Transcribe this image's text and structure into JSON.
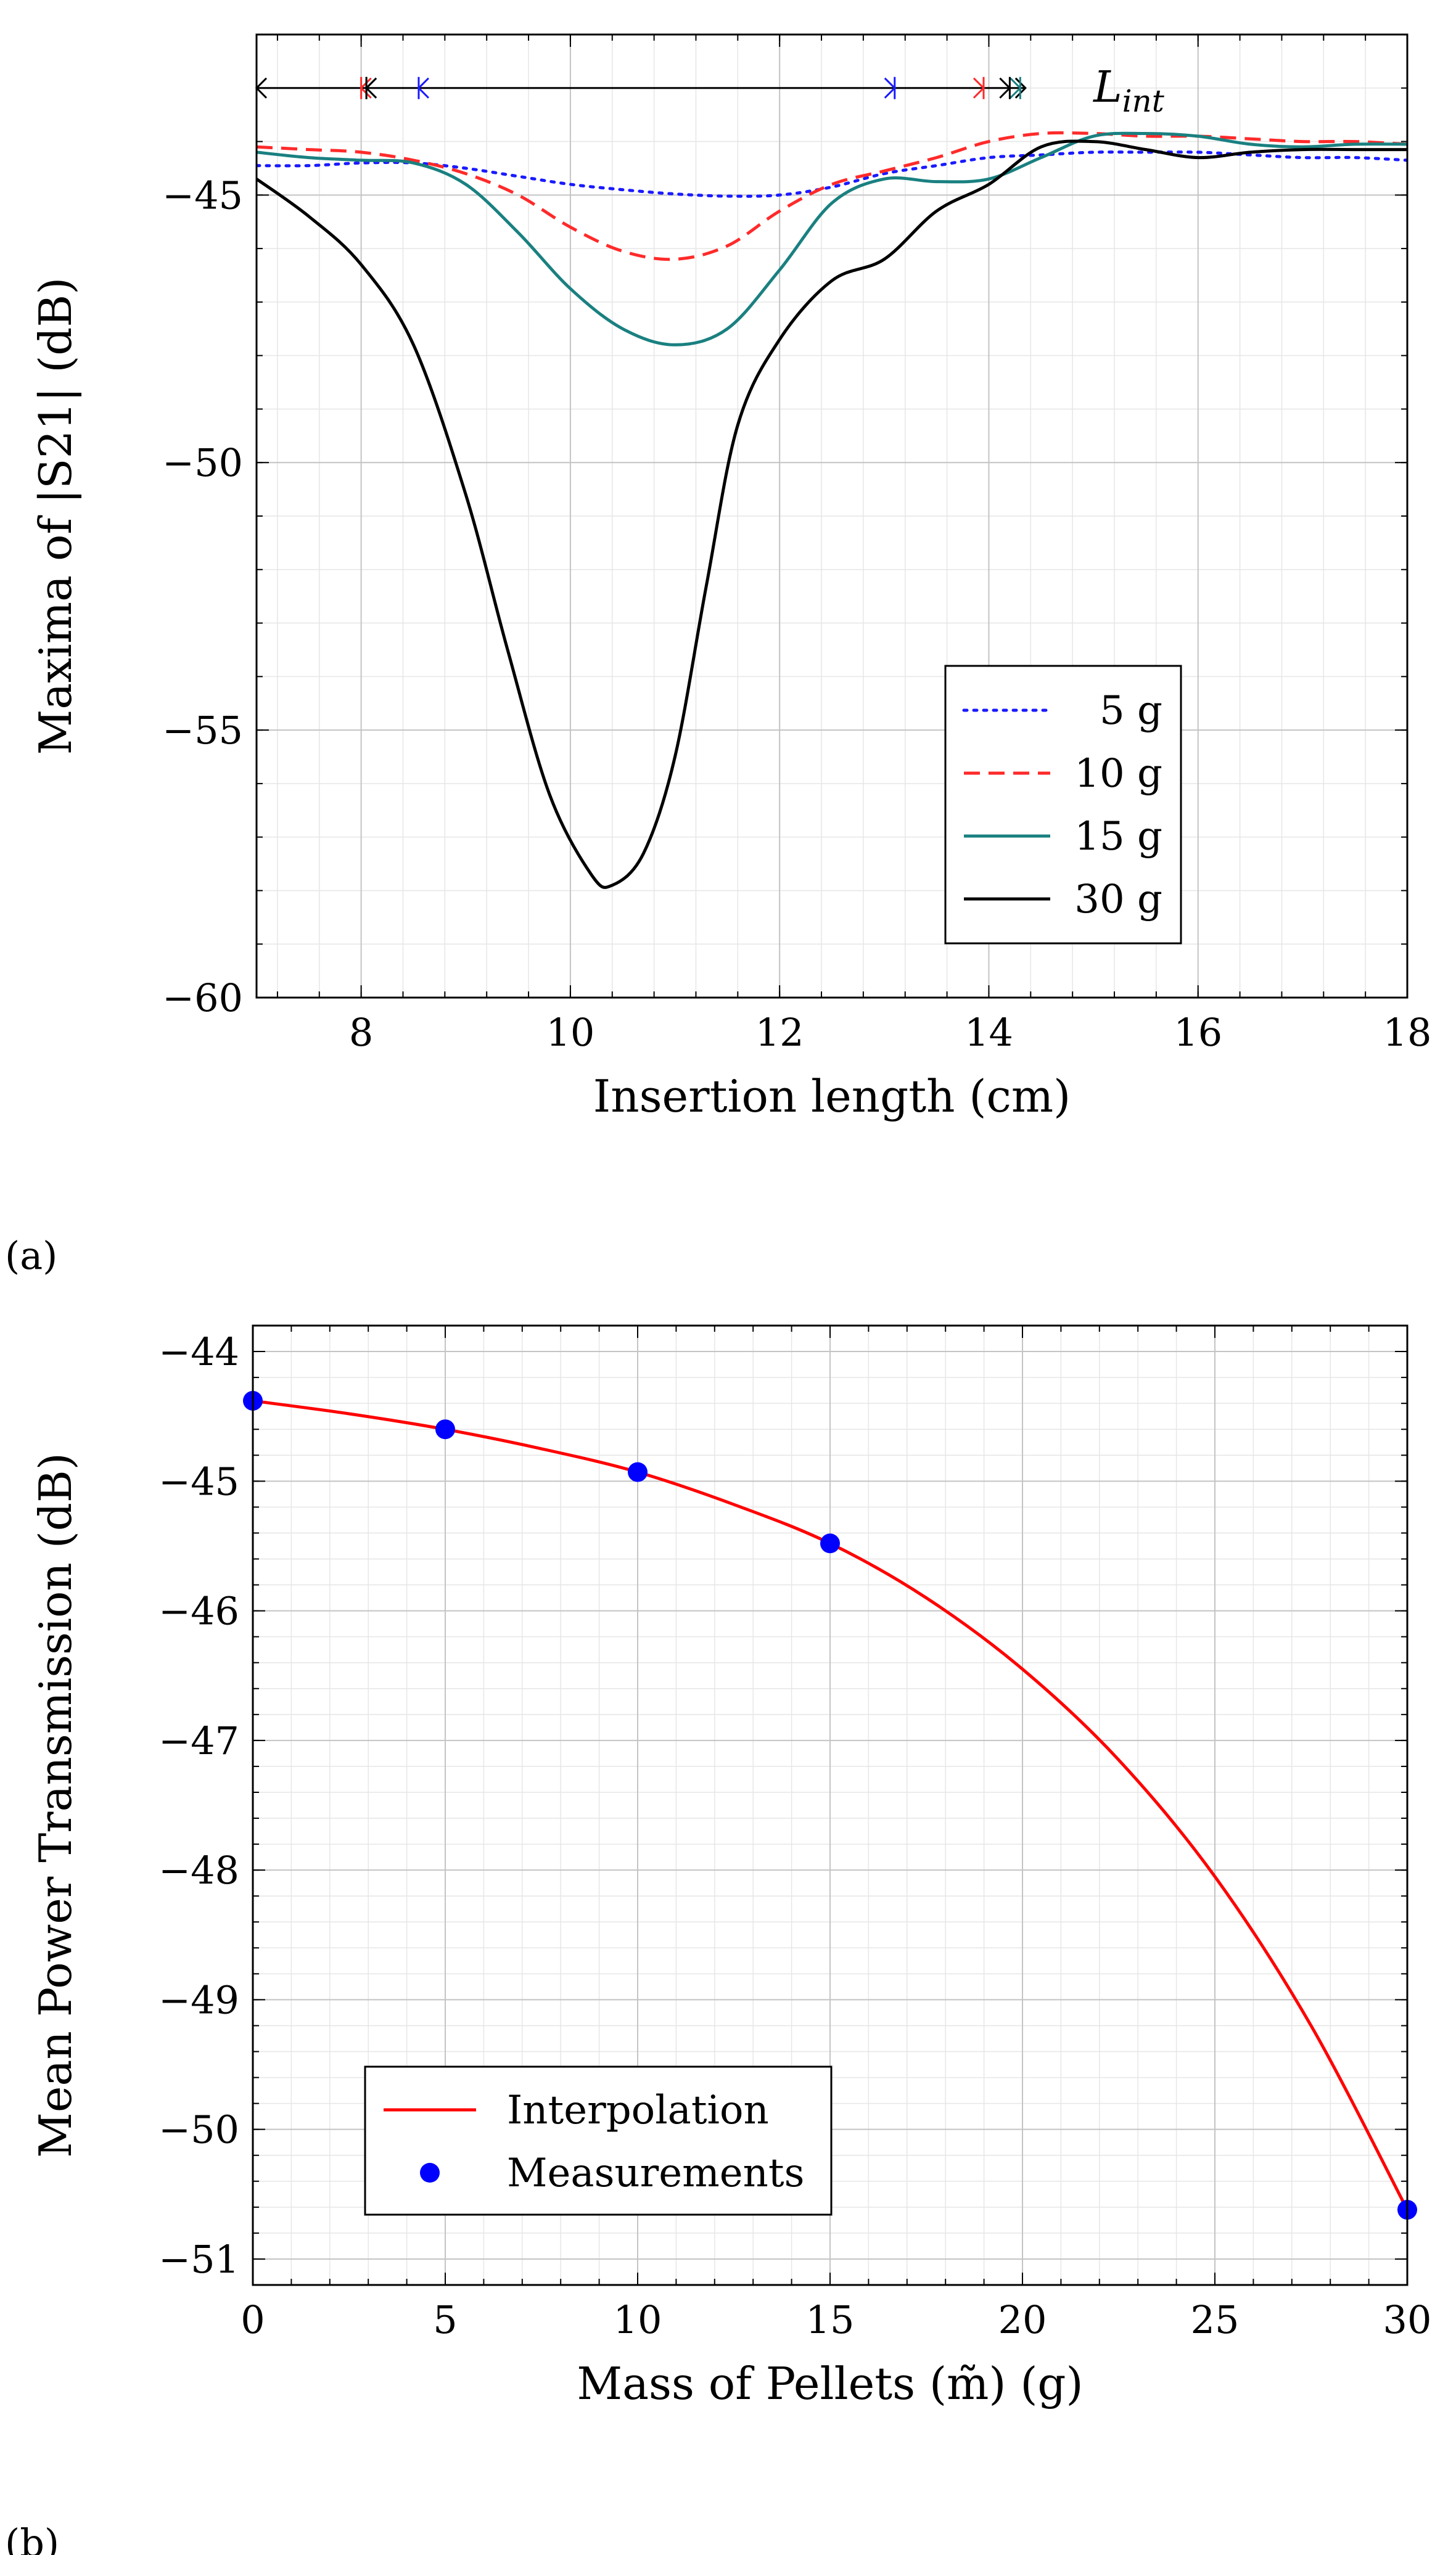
{
  "chart_data": [
    {
      "type": "line",
      "panel_label": "(a)",
      "xlabel": "Insertion length (cm)",
      "ylabel": "Maxima of |S21| (dB)",
      "xlim": [
        7,
        18
      ],
      "ylim": [
        -60,
        -42
      ],
      "xticks": [
        8,
        10,
        12,
        14,
        16,
        18
      ],
      "xtick_labels": [
        "8",
        "10",
        "12",
        "14",
        "16",
        "18"
      ],
      "yticks": [
        -60,
        -55,
        -50,
        -45
      ],
      "ytick_labels": [
        "−60",
        "−55",
        "−50",
        "−45"
      ],
      "grid": true,
      "legend_position": "bottom-right",
      "annotation": {
        "label": "L",
        "subscript": "int",
        "y": -43.0,
        "x_start": 7,
        "markers": [
          {
            "series": "5 g",
            "x_start": 8.55,
            "x_end": 13.1
          },
          {
            "series": "10 g",
            "x_start": 8.0,
            "x_end": 13.95
          },
          {
            "series": "15 g",
            "x_start": 8.05,
            "x_end": 14.3
          },
          {
            "series": "30 g",
            "x_start": 8.05,
            "x_end": 14.2
          }
        ]
      },
      "series": [
        {
          "name": "5 g",
          "color": "#1a1aff",
          "dash": "dotted",
          "x": [
            7,
            7.5,
            8,
            8.5,
            9,
            9.5,
            10,
            10.5,
            11,
            11.5,
            12,
            12.5,
            13,
            13.5,
            14,
            14.5,
            15,
            15.5,
            16,
            16.5,
            17,
            17.5,
            18
          ],
          "y": [
            -44.45,
            -44.45,
            -44.4,
            -44.4,
            -44.5,
            -44.65,
            -44.8,
            -44.9,
            -44.98,
            -45.02,
            -45.0,
            -44.85,
            -44.6,
            -44.45,
            -44.3,
            -44.25,
            -44.2,
            -44.2,
            -44.2,
            -44.25,
            -44.3,
            -44.3,
            -44.35
          ]
        },
        {
          "name": "10 g",
          "color": "#ff2a2a",
          "dash": "dashed",
          "x": [
            7,
            7.5,
            8,
            8.5,
            9,
            9.5,
            10,
            10.5,
            11,
            11.5,
            12,
            12.5,
            13,
            13.5,
            14,
            14.5,
            15,
            15.5,
            16,
            16.5,
            17,
            17.5,
            18
          ],
          "y": [
            -44.1,
            -44.15,
            -44.2,
            -44.35,
            -44.6,
            -45.0,
            -45.6,
            -46.05,
            -46.2,
            -45.95,
            -45.3,
            -44.8,
            -44.55,
            -44.3,
            -44.0,
            -43.85,
            -43.85,
            -43.9,
            -43.9,
            -43.95,
            -44.0,
            -44.0,
            -44.05
          ]
        },
        {
          "name": "15 g",
          "color": "#1a8080",
          "dash": "solid",
          "x": [
            7,
            7.5,
            8,
            8.5,
            9,
            9.5,
            10,
            10.5,
            11,
            11.5,
            12,
            12.5,
            13,
            13.5,
            14,
            14.5,
            15,
            15.5,
            16,
            16.5,
            17,
            17.5,
            18
          ],
          "y": [
            -44.2,
            -44.3,
            -44.35,
            -44.4,
            -44.8,
            -45.7,
            -46.75,
            -47.5,
            -47.8,
            -47.5,
            -46.4,
            -45.15,
            -44.7,
            -44.75,
            -44.7,
            -44.3,
            -43.9,
            -43.85,
            -43.9,
            -44.05,
            -44.1,
            -44.05,
            -44.05
          ]
        },
        {
          "name": "30 g",
          "color": "#000000",
          "dash": "solid",
          "x": [
            7,
            7.5,
            8,
            8.5,
            9,
            9.4,
            9.8,
            10.2,
            10.4,
            10.7,
            11,
            11.3,
            11.6,
            12,
            12.5,
            13,
            13.5,
            14,
            14.5,
            15,
            15.5,
            16,
            16.5,
            17,
            17.5,
            18
          ],
          "y": [
            -44.7,
            -45.4,
            -46.3,
            -47.8,
            -50.6,
            -53.5,
            -56.2,
            -57.7,
            -57.9,
            -57.3,
            -55.5,
            -52.3,
            -49.3,
            -47.7,
            -46.6,
            -46.2,
            -45.3,
            -44.8,
            -44.1,
            -44.0,
            -44.15,
            -44.3,
            -44.2,
            -44.15,
            -44.15,
            -44.15
          ]
        }
      ]
    },
    {
      "type": "line",
      "panel_label": "(b)",
      "xlabel": "Mass of Pellets (m̃) (g)",
      "ylabel": "Mean Power Transmission (dB)",
      "xlim": [
        0,
        30
      ],
      "ylim": [
        -51.2,
        -43.8
      ],
      "xticks": [
        0,
        5,
        10,
        15,
        20,
        25,
        30
      ],
      "xtick_labels": [
        "0",
        "5",
        "10",
        "15",
        "20",
        "25",
        "30"
      ],
      "yticks": [
        -51,
        -50,
        -49,
        -48,
        -47,
        -46,
        -45,
        -44
      ],
      "ytick_labels": [
        "−51",
        "−50",
        "−49",
        "−48",
        "−47",
        "−46",
        "−45",
        "−44"
      ],
      "grid": true,
      "legend_position": "bottom-left",
      "series": [
        {
          "name": "Interpolation",
          "color": "#ff0000",
          "kind": "line",
          "x": [
            0,
            2.5,
            5,
            7.5,
            10,
            12.5,
            15,
            17.5,
            20,
            22.5,
            25,
            27.5,
            30
          ],
          "y": [
            -44.38,
            -44.48,
            -44.6,
            -44.75,
            -44.93,
            -45.18,
            -45.48,
            -45.9,
            -46.45,
            -47.15,
            -48.05,
            -49.2,
            -50.62
          ]
        },
        {
          "name": "Measurements",
          "color": "#0000ff",
          "kind": "scatter",
          "x": [
            0,
            5,
            10,
            15,
            30
          ],
          "y": [
            -44.38,
            -44.6,
            -44.93,
            -45.48,
            -50.62
          ]
        }
      ]
    }
  ]
}
